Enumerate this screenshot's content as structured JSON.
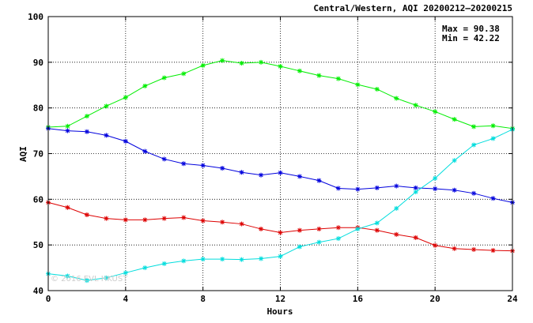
{
  "chart_data": {
    "type": "line",
    "title": "Central/Western, AQI 20200212–20200215",
    "xlabel": "Hours",
    "ylabel": "AQI",
    "xlim": [
      0,
      24
    ],
    "ylim": [
      40,
      100
    ],
    "xticks": [
      0,
      4,
      8,
      12,
      16,
      20,
      24
    ],
    "yticks": [
      40,
      50,
      60,
      70,
      80,
      90,
      100
    ],
    "grid": true,
    "annotations": {
      "max": "Max = 90.38",
      "min": "Min = 42.22"
    },
    "watermark": "© 2016 EVL HKUST",
    "x": [
      0,
      1,
      2,
      3,
      4,
      5,
      6,
      7,
      8,
      9,
      10,
      11,
      12,
      13,
      14,
      15,
      16,
      17,
      18,
      19,
      20,
      21,
      22,
      23,
      24
    ],
    "series": [
      {
        "color": "#00ee00",
        "values": [
          75.8,
          76.0,
          78.2,
          80.4,
          82.3,
          84.8,
          86.6,
          87.5,
          89.3,
          90.38,
          89.8,
          90.0,
          89.1,
          88.1,
          87.1,
          86.4,
          85.1,
          84.1,
          82.1,
          80.6,
          79.2,
          77.5,
          75.9,
          76.1,
          75.5
        ]
      },
      {
        "color": "#0000dd",
        "values": [
          75.5,
          75.0,
          74.8,
          74.0,
          72.7,
          70.5,
          68.8,
          67.8,
          67.4,
          66.8,
          65.9,
          65.3,
          65.8,
          65.0,
          64.1,
          62.4,
          62.2,
          62.5,
          62.9,
          62.5,
          62.3,
          62.0,
          61.3,
          60.2,
          59.3
        ]
      },
      {
        "color": "#dd0000",
        "values": [
          59.3,
          58.2,
          56.6,
          55.8,
          55.5,
          55.5,
          55.8,
          56.0,
          55.3,
          55.0,
          54.6,
          53.5,
          52.7,
          53.2,
          53.5,
          53.8,
          53.8,
          53.2,
          52.3,
          51.6,
          49.9,
          49.2,
          49.0,
          48.8,
          48.7
        ]
      },
      {
        "color": "#00dddd",
        "values": [
          43.7,
          43.2,
          42.22,
          42.8,
          43.9,
          45.0,
          45.9,
          46.5,
          46.9,
          46.9,
          46.8,
          47.0,
          47.5,
          49.6,
          50.6,
          51.4,
          53.5,
          54.8,
          58.0,
          61.6,
          64.6,
          68.5,
          71.9,
          73.3,
          75.3
        ]
      }
    ]
  }
}
